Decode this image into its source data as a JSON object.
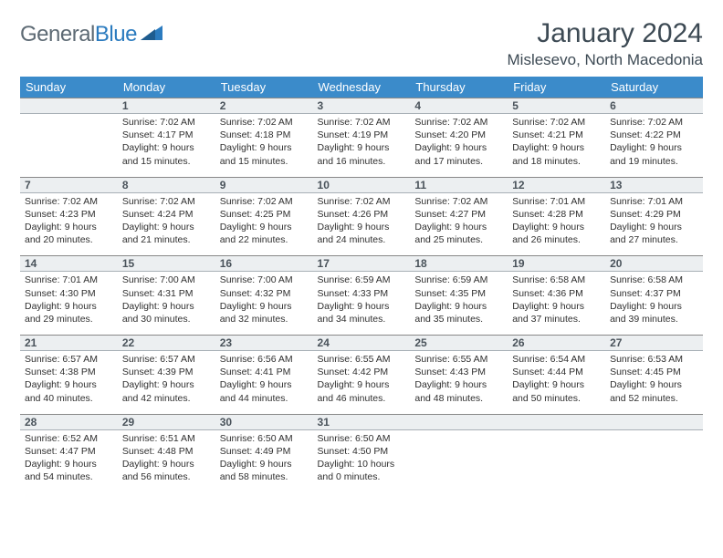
{
  "brand": {
    "part1": "General",
    "part2": "Blue"
  },
  "title": "January 2024",
  "location": "Mislesevo, North Macedonia",
  "colors": {
    "header_bg": "#3b8bca",
    "header_fg": "#ffffff",
    "daynum_bg": "#eceff1",
    "brand_gray": "#5d6a74",
    "brand_blue": "#2b7bbf",
    "text": "#3a3a3a"
  },
  "weekdays": [
    "Sunday",
    "Monday",
    "Tuesday",
    "Wednesday",
    "Thursday",
    "Friday",
    "Saturday"
  ],
  "weeks": [
    [
      null,
      {
        "n": "1",
        "sunrise": "7:02 AM",
        "sunset": "4:17 PM",
        "daylight": "9 hours and 15 minutes."
      },
      {
        "n": "2",
        "sunrise": "7:02 AM",
        "sunset": "4:18 PM",
        "daylight": "9 hours and 15 minutes."
      },
      {
        "n": "3",
        "sunrise": "7:02 AM",
        "sunset": "4:19 PM",
        "daylight": "9 hours and 16 minutes."
      },
      {
        "n": "4",
        "sunrise": "7:02 AM",
        "sunset": "4:20 PM",
        "daylight": "9 hours and 17 minutes."
      },
      {
        "n": "5",
        "sunrise": "7:02 AM",
        "sunset": "4:21 PM",
        "daylight": "9 hours and 18 minutes."
      },
      {
        "n": "6",
        "sunrise": "7:02 AM",
        "sunset": "4:22 PM",
        "daylight": "9 hours and 19 minutes."
      }
    ],
    [
      {
        "n": "7",
        "sunrise": "7:02 AM",
        "sunset": "4:23 PM",
        "daylight": "9 hours and 20 minutes."
      },
      {
        "n": "8",
        "sunrise": "7:02 AM",
        "sunset": "4:24 PM",
        "daylight": "9 hours and 21 minutes."
      },
      {
        "n": "9",
        "sunrise": "7:02 AM",
        "sunset": "4:25 PM",
        "daylight": "9 hours and 22 minutes."
      },
      {
        "n": "10",
        "sunrise": "7:02 AM",
        "sunset": "4:26 PM",
        "daylight": "9 hours and 24 minutes."
      },
      {
        "n": "11",
        "sunrise": "7:02 AM",
        "sunset": "4:27 PM",
        "daylight": "9 hours and 25 minutes."
      },
      {
        "n": "12",
        "sunrise": "7:01 AM",
        "sunset": "4:28 PM",
        "daylight": "9 hours and 26 minutes."
      },
      {
        "n": "13",
        "sunrise": "7:01 AM",
        "sunset": "4:29 PM",
        "daylight": "9 hours and 27 minutes."
      }
    ],
    [
      {
        "n": "14",
        "sunrise": "7:01 AM",
        "sunset": "4:30 PM",
        "daylight": "9 hours and 29 minutes."
      },
      {
        "n": "15",
        "sunrise": "7:00 AM",
        "sunset": "4:31 PM",
        "daylight": "9 hours and 30 minutes."
      },
      {
        "n": "16",
        "sunrise": "7:00 AM",
        "sunset": "4:32 PM",
        "daylight": "9 hours and 32 minutes."
      },
      {
        "n": "17",
        "sunrise": "6:59 AM",
        "sunset": "4:33 PM",
        "daylight": "9 hours and 34 minutes."
      },
      {
        "n": "18",
        "sunrise": "6:59 AM",
        "sunset": "4:35 PM",
        "daylight": "9 hours and 35 minutes."
      },
      {
        "n": "19",
        "sunrise": "6:58 AM",
        "sunset": "4:36 PM",
        "daylight": "9 hours and 37 minutes."
      },
      {
        "n": "20",
        "sunrise": "6:58 AM",
        "sunset": "4:37 PM",
        "daylight": "9 hours and 39 minutes."
      }
    ],
    [
      {
        "n": "21",
        "sunrise": "6:57 AM",
        "sunset": "4:38 PM",
        "daylight": "9 hours and 40 minutes."
      },
      {
        "n": "22",
        "sunrise": "6:57 AM",
        "sunset": "4:39 PM",
        "daylight": "9 hours and 42 minutes."
      },
      {
        "n": "23",
        "sunrise": "6:56 AM",
        "sunset": "4:41 PM",
        "daylight": "9 hours and 44 minutes."
      },
      {
        "n": "24",
        "sunrise": "6:55 AM",
        "sunset": "4:42 PM",
        "daylight": "9 hours and 46 minutes."
      },
      {
        "n": "25",
        "sunrise": "6:55 AM",
        "sunset": "4:43 PM",
        "daylight": "9 hours and 48 minutes."
      },
      {
        "n": "26",
        "sunrise": "6:54 AM",
        "sunset": "4:44 PM",
        "daylight": "9 hours and 50 minutes."
      },
      {
        "n": "27",
        "sunrise": "6:53 AM",
        "sunset": "4:45 PM",
        "daylight": "9 hours and 52 minutes."
      }
    ],
    [
      {
        "n": "28",
        "sunrise": "6:52 AM",
        "sunset": "4:47 PM",
        "daylight": "9 hours and 54 minutes."
      },
      {
        "n": "29",
        "sunrise": "6:51 AM",
        "sunset": "4:48 PM",
        "daylight": "9 hours and 56 minutes."
      },
      {
        "n": "30",
        "sunrise": "6:50 AM",
        "sunset": "4:49 PM",
        "daylight": "9 hours and 58 minutes."
      },
      {
        "n": "31",
        "sunrise": "6:50 AM",
        "sunset": "4:50 PM",
        "daylight": "10 hours and 0 minutes."
      },
      null,
      null,
      null
    ]
  ],
  "labels": {
    "sunrise": "Sunrise:",
    "sunset": "Sunset:",
    "daylight": "Daylight:"
  }
}
